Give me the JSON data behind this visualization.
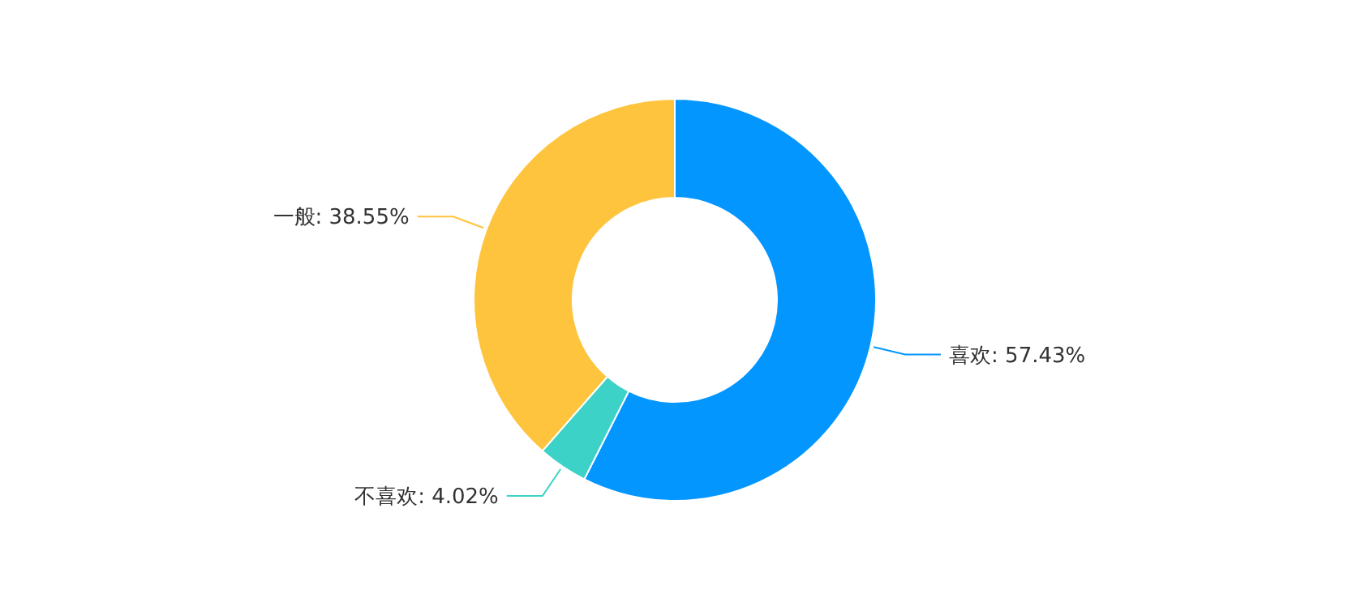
{
  "chart_data": {
    "type": "donut",
    "categories": [
      "喜欢",
      "不喜欢",
      "一般"
    ],
    "values": [
      57.43,
      4.02,
      38.55
    ],
    "value_labels": [
      "57.43%",
      "4.02%",
      "38.55%"
    ],
    "colors": [
      "#0496ff",
      "#3dd2c8",
      "#ffc43d"
    ],
    "legend": false
  }
}
